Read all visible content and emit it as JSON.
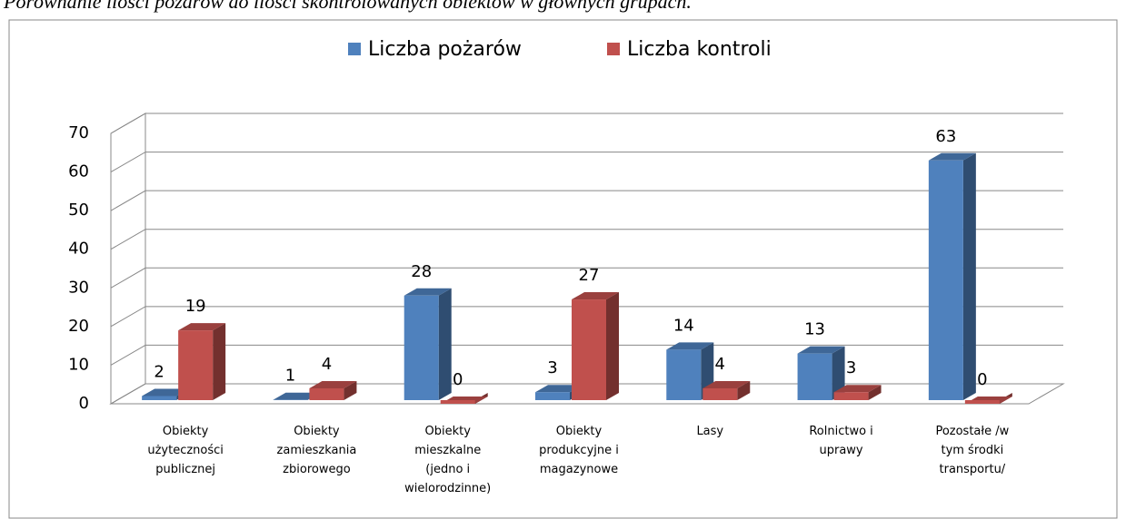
{
  "chart_data": {
    "type": "bar3d",
    "title": "Porównanie ilości pożarów do ilości skontrolowanych obiektów w głównych grupach.",
    "categories": [
      "Obiekty\nużyteczności\npublicznej",
      "Obiekty\nzamieszkania\nzbiorowego",
      "Obiekty\nmieszkalne\n(jedno i\nwielorodzinne)",
      "Obiekty\nprodukcyjne i\nmagazynowe",
      "Lasy",
      "Rolnictwo i\nuprawy",
      "Pozostałe /w\ntym środki\ntransportu/"
    ],
    "series": [
      {
        "name": "Liczba pożarów",
        "color": "#4f81bd",
        "values": [
          2,
          1,
          28,
          3,
          14,
          13,
          63
        ]
      },
      {
        "name": "Liczba kontroli",
        "color": "#c0504d",
        "values": [
          19,
          4,
          0,
          27,
          4,
          3,
          0
        ]
      }
    ],
    "ylim": [
      0,
      70
    ],
    "yticks": [
      0,
      10,
      20,
      30,
      40,
      50,
      60,
      70
    ],
    "grid": true,
    "legend": "top"
  }
}
